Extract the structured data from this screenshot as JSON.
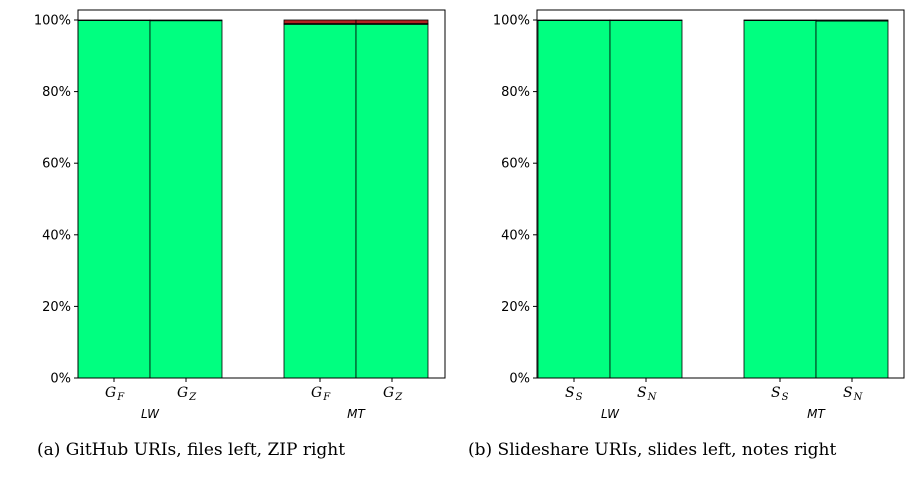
{
  "chart_data": [
    {
      "type": "bar",
      "stacked": true,
      "ylim": [
        0,
        100
      ],
      "yticks": [
        "0%",
        "20%",
        "40%",
        "60%",
        "80%",
        "100%"
      ],
      "groups": [
        "LW",
        "MT"
      ],
      "categories": [
        {
          "main": "G",
          "sub": "F",
          "group": "LW"
        },
        {
          "main": "G",
          "sub": "Z",
          "group": "LW"
        },
        {
          "main": "G",
          "sub": "F",
          "group": "MT"
        },
        {
          "main": "G",
          "sub": "Z",
          "group": "MT"
        }
      ],
      "series": [
        {
          "color": "#00ff80",
          "values": [
            99.9,
            99.8,
            98.8,
            98.8
          ]
        },
        {
          "color": "#1a1a1a",
          "values": [
            0.1,
            0.2,
            0.2,
            0.2
          ]
        },
        {
          "color": "#b22222",
          "values": [
            0,
            0,
            1.0,
            1.0
          ]
        }
      ],
      "caption": "(a) GitHub URIs, files left, ZIP right",
      "grid": false
    },
    {
      "type": "bar",
      "stacked": true,
      "ylim": [
        0,
        100
      ],
      "yticks": [
        "0%",
        "20%",
        "40%",
        "60%",
        "80%",
        "100%"
      ],
      "groups": [
        "LW",
        "MT"
      ],
      "categories": [
        {
          "main": "S",
          "sub": "S",
          "group": "LW"
        },
        {
          "main": "S",
          "sub": "N",
          "group": "LW"
        },
        {
          "main": "S",
          "sub": "S",
          "group": "MT"
        },
        {
          "main": "S",
          "sub": "N",
          "group": "MT"
        }
      ],
      "series": [
        {
          "color": "#00ff80",
          "values": [
            99.9,
            99.9,
            99.9,
            99.7
          ]
        },
        {
          "color": "#1a1a1a",
          "values": [
            0.1,
            0.1,
            0.1,
            0.3
          ]
        },
        {
          "color": "#b22222",
          "values": [
            0,
            0,
            0,
            0
          ]
        }
      ],
      "caption": "(b) Slideshare URIs, slides left, notes right",
      "grid": false
    }
  ]
}
